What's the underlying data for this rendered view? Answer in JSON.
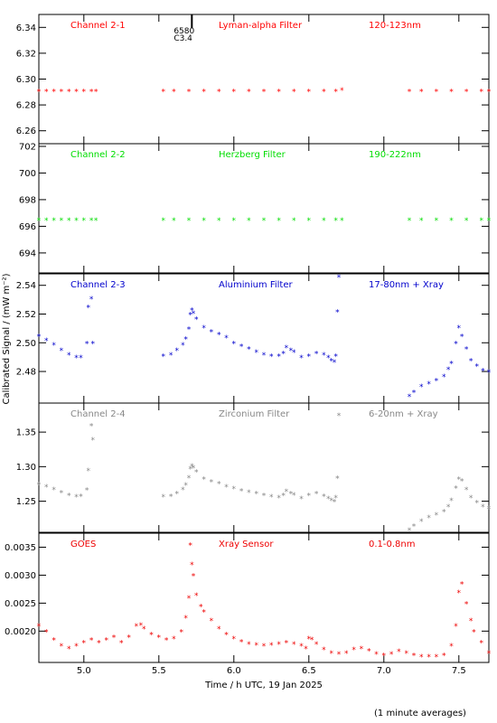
{
  "figure": {
    "xlabel": "Time / h UTC, 19 Jan 2025",
    "ylabel": "Calibrated Signal / (mW m⁻²)",
    "footnote": "(1 minute averages)",
    "xlim": [
      4.7,
      7.7
    ],
    "xticks": [
      "5.0",
      "5.5",
      "6.0",
      "6.5",
      "7.0",
      "7.5"
    ],
    "xtick_values": [
      5.0,
      5.5,
      6.0,
      6.5,
      7.0,
      7.5
    ],
    "marker": {
      "lines": [
        "6580",
        "C3.4"
      ],
      "x": 5.72
    }
  },
  "chart_data": [
    {
      "type": "scatter",
      "channel": "Channel 2-1",
      "filter": "Lyman-alpha Filter",
      "band": "120-123nm",
      "color": "#ff0000",
      "ylim": [
        6.25,
        6.35
      ],
      "yticks": [
        "6.26",
        "6.28",
        "6.30",
        "6.32",
        "6.34"
      ],
      "ytick_values": [
        6.26,
        6.28,
        6.3,
        6.32,
        6.34
      ],
      "x": [
        4.7,
        4.75,
        4.8,
        4.85,
        4.9,
        4.95,
        5.0,
        5.05,
        5.08,
        5.53,
        5.6,
        5.7,
        5.8,
        5.9,
        6.0,
        6.1,
        6.2,
        6.3,
        6.4,
        6.5,
        6.6,
        6.68,
        6.72,
        7.17,
        7.25,
        7.35,
        7.45,
        7.55,
        7.65,
        7.7
      ],
      "y": [
        6.291,
        6.291,
        6.291,
        6.291,
        6.291,
        6.291,
        6.291,
        6.291,
        6.291,
        6.291,
        6.291,
        6.291,
        6.291,
        6.291,
        6.291,
        6.291,
        6.291,
        6.291,
        6.291,
        6.291,
        6.291,
        6.291,
        6.292,
        6.291,
        6.291,
        6.291,
        6.291,
        6.291,
        6.291,
        6.291
      ]
    },
    {
      "type": "scatter",
      "channel": "Channel 2-2",
      "filter": "Herzberg Filter",
      "band": "190-222nm",
      "color": "#00dd00",
      "ylim": [
        692.5,
        702.2
      ],
      "yticks": [
        "694",
        "696",
        "698",
        "700",
        "702"
      ],
      "ytick_values": [
        694,
        696,
        698,
        700,
        702
      ],
      "x": [
        4.7,
        4.75,
        4.8,
        4.85,
        4.9,
        4.95,
        5.0,
        5.05,
        5.08,
        5.53,
        5.6,
        5.7,
        5.8,
        5.9,
        6.0,
        6.1,
        6.2,
        6.3,
        6.4,
        6.5,
        6.6,
        6.68,
        6.72,
        7.17,
        7.25,
        7.35,
        7.45,
        7.55,
        7.65,
        7.7
      ],
      "y": [
        696.5,
        696.5,
        696.5,
        696.5,
        696.5,
        696.5,
        696.5,
        696.5,
        696.5,
        696.5,
        696.5,
        696.5,
        696.5,
        696.5,
        696.5,
        696.5,
        696.5,
        696.5,
        696.5,
        696.5,
        696.5,
        696.5,
        696.5,
        696.5,
        696.5,
        696.5,
        696.5,
        696.5,
        696.5,
        696.5
      ]
    },
    {
      "type": "scatter",
      "channel": "Channel 2-3",
      "filter": "Aluminium Filter",
      "band": "17-80nm + Xray",
      "color": "#0000cc",
      "ylim": [
        2.458,
        2.548
      ],
      "yticks": [
        "2.48",
        "2.50",
        "2.52",
        "2.54"
      ],
      "ytick_values": [
        2.48,
        2.5,
        2.52,
        2.54
      ],
      "x": [
        4.7,
        4.75,
        4.8,
        4.85,
        4.9,
        4.95,
        4.98,
        5.02,
        5.03,
        5.05,
        5.06,
        5.53,
        5.58,
        5.62,
        5.66,
        5.68,
        5.7,
        5.71,
        5.72,
        5.73,
        5.75,
        5.8,
        5.85,
        5.9,
        5.95,
        6.0,
        6.05,
        6.1,
        6.15,
        6.2,
        6.25,
        6.3,
        6.33,
        6.35,
        6.38,
        6.4,
        6.45,
        6.5,
        6.55,
        6.6,
        6.63,
        6.65,
        6.67,
        6.68,
        6.69,
        6.7,
        7.17,
        7.2,
        7.25,
        7.3,
        7.35,
        7.4,
        7.43,
        7.45,
        7.48,
        7.5,
        7.52,
        7.55,
        7.58,
        7.62,
        7.66,
        7.7
      ],
      "y": [
        2.505,
        2.502,
        2.499,
        2.495,
        2.492,
        2.49,
        2.49,
        2.5,
        2.525,
        2.531,
        2.5,
        2.491,
        2.492,
        2.495,
        2.499,
        2.503,
        2.51,
        2.52,
        2.523,
        2.521,
        2.517,
        2.511,
        2.508,
        2.506,
        2.504,
        2.5,
        2.498,
        2.496,
        2.494,
        2.492,
        2.491,
        2.491,
        2.493,
        2.497,
        2.495,
        2.494,
        2.49,
        2.491,
        2.493,
        2.492,
        2.49,
        2.488,
        2.487,
        2.491,
        2.522,
        2.546,
        2.463,
        2.466,
        2.47,
        2.472,
        2.474,
        2.477,
        2.482,
        2.486,
        2.5,
        2.511,
        2.505,
        2.496,
        2.488,
        2.484,
        2.481,
        2.48
      ]
    },
    {
      "type": "scatter",
      "channel": "Channel 2-4",
      "filter": "Zirconium Filter",
      "band": "6-20nm + Xray",
      "color": "#888888",
      "ylim": [
        1.205,
        1.392
      ],
      "yticks": [
        "1.25",
        "1.30",
        "1.35"
      ],
      "ytick_values": [
        1.25,
        1.3,
        1.35
      ],
      "x": [
        4.7,
        4.75,
        4.8,
        4.85,
        4.9,
        4.95,
        4.98,
        5.02,
        5.03,
        5.05,
        5.06,
        5.53,
        5.58,
        5.62,
        5.66,
        5.68,
        5.7,
        5.71,
        5.72,
        5.73,
        5.75,
        5.8,
        5.85,
        5.9,
        5.95,
        6.0,
        6.05,
        6.1,
        6.15,
        6.2,
        6.25,
        6.3,
        6.33,
        6.35,
        6.38,
        6.4,
        6.45,
        6.5,
        6.55,
        6.6,
        6.63,
        6.65,
        6.67,
        6.68,
        6.69,
        6.7,
        7.17,
        7.2,
        7.25,
        7.3,
        7.35,
        7.4,
        7.43,
        7.45,
        7.48,
        7.5,
        7.52,
        7.55,
        7.58,
        7.62,
        7.66,
        7.7
      ],
      "y": [
        1.275,
        1.272,
        1.268,
        1.263,
        1.259,
        1.257,
        1.258,
        1.267,
        1.295,
        1.36,
        1.34,
        1.257,
        1.258,
        1.262,
        1.268,
        1.274,
        1.285,
        1.298,
        1.302,
        1.299,
        1.293,
        1.283,
        1.279,
        1.276,
        1.272,
        1.269,
        1.266,
        1.264,
        1.262,
        1.259,
        1.257,
        1.256,
        1.259,
        1.265,
        1.262,
        1.26,
        1.255,
        1.259,
        1.262,
        1.258,
        1.255,
        1.252,
        1.25,
        1.256,
        1.284,
        1.375,
        1.209,
        1.215,
        1.222,
        1.227,
        1.231,
        1.236,
        1.243,
        1.252,
        1.27,
        1.283,
        1.28,
        1.268,
        1.256,
        1.249,
        1.243,
        1.24
      ]
    },
    {
      "type": "scatter",
      "channel": "GOES",
      "filter": "Xray Sensor",
      "band": "0.1-0.8nm",
      "color": "#ee0000",
      "ylim": [
        0.00144,
        0.00375
      ],
      "yticks": [
        "0.0020",
        "0.0025",
        "0.0030",
        "0.0035"
      ],
      "ytick_values": [
        0.002,
        0.0025,
        0.003,
        0.0035
      ],
      "x": [
        4.7,
        4.75,
        4.8,
        4.85,
        4.9,
        4.95,
        5.0,
        5.05,
        5.1,
        5.15,
        5.2,
        5.25,
        5.3,
        5.35,
        5.38,
        5.4,
        5.45,
        5.5,
        5.55,
        5.6,
        5.65,
        5.68,
        5.7,
        5.71,
        5.72,
        5.73,
        5.75,
        5.78,
        5.8,
        5.85,
        5.9,
        5.95,
        6.0,
        6.05,
        6.1,
        6.15,
        6.2,
        6.25,
        6.3,
        6.35,
        6.4,
        6.45,
        6.48,
        6.5,
        6.52,
        6.55,
        6.6,
        6.65,
        6.7,
        6.75,
        6.8,
        6.85,
        6.9,
        6.95,
        7.0,
        7.05,
        7.1,
        7.15,
        7.2,
        7.25,
        7.3,
        7.35,
        7.4,
        7.45,
        7.48,
        7.5,
        7.52,
        7.55,
        7.58,
        7.6,
        7.65,
        7.7
      ],
      "y": [
        0.0021,
        0.002,
        0.00185,
        0.00175,
        0.0017,
        0.00175,
        0.0018,
        0.00185,
        0.0018,
        0.00185,
        0.0019,
        0.0018,
        0.0019,
        0.0021,
        0.00212,
        0.00205,
        0.00195,
        0.0019,
        0.00185,
        0.00188,
        0.002,
        0.00225,
        0.0026,
        0.00355,
        0.0032,
        0.003,
        0.00265,
        0.00245,
        0.00235,
        0.0022,
        0.00205,
        0.00195,
        0.00188,
        0.00182,
        0.00178,
        0.00176,
        0.00175,
        0.00176,
        0.00178,
        0.0018,
        0.00178,
        0.00175,
        0.0017,
        0.00188,
        0.00186,
        0.00178,
        0.00168,
        0.00162,
        0.0016,
        0.00162,
        0.00168,
        0.0017,
        0.00166,
        0.0016,
        0.00158,
        0.0016,
        0.00165,
        0.00162,
        0.00158,
        0.00155,
        0.00155,
        0.00155,
        0.00158,
        0.00175,
        0.0021,
        0.0027,
        0.00285,
        0.0025,
        0.0022,
        0.002,
        0.0018,
        0.00162
      ]
    }
  ]
}
